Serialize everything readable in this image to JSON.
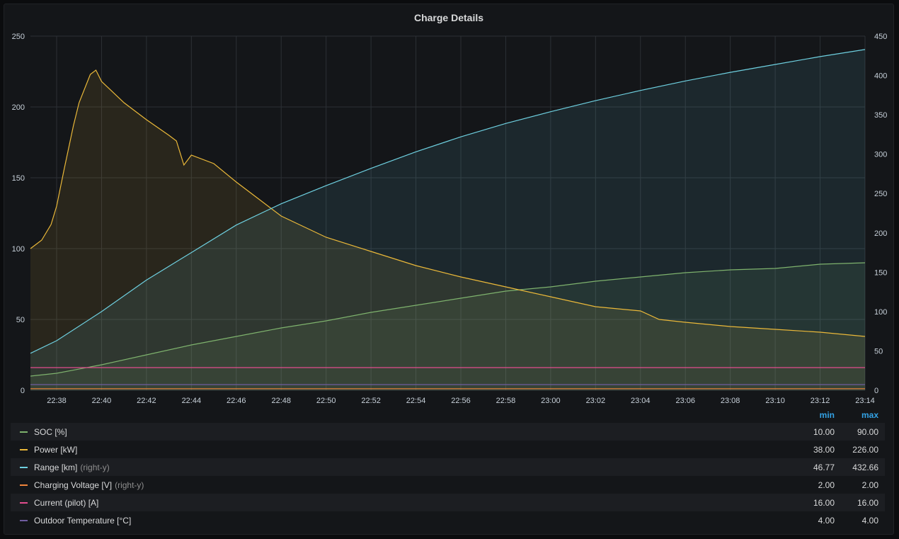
{
  "panel": {
    "title": "Charge Details"
  },
  "legend": {
    "min_label": "min",
    "max_label": "max",
    "rows": [
      {
        "name": "SOC [%]",
        "axis_tag": "",
        "min": "10.00",
        "max": "90.00",
        "color": "#7eb26d"
      },
      {
        "name": "Power [kW]",
        "axis_tag": "",
        "min": "38.00",
        "max": "226.00",
        "color": "#eab839"
      },
      {
        "name": "Range [km]",
        "axis_tag": "(right-y)",
        "min": "46.77",
        "max": "432.66",
        "color": "#6ed0e0"
      },
      {
        "name": "Charging Voltage [V]",
        "axis_tag": "(right-y)",
        "min": "2.00",
        "max": "2.00",
        "color": "#ef843c"
      },
      {
        "name": "Current (pilot) [A]",
        "axis_tag": "",
        "min": "16.00",
        "max": "16.00",
        "color": "#e24d8e"
      },
      {
        "name": "Outdoor Temperature [°C]",
        "axis_tag": "",
        "min": "4.00",
        "max": "4.00",
        "color": "#705da0"
      }
    ]
  },
  "chart_data": {
    "type": "line",
    "title": "Charge Details",
    "x_range_minutes": [
      22.6,
      23.233
    ],
    "x_ticks": [
      "22:38",
      "22:40",
      "22:42",
      "22:44",
      "22:46",
      "22:48",
      "22:50",
      "22:52",
      "22:54",
      "22:56",
      "22:58",
      "23:00",
      "23:02",
      "23:04",
      "23:06",
      "23:08",
      "23:10",
      "23:12",
      "23:14"
    ],
    "x_start_time": "22:36:50",
    "x_end_time": "23:14:00",
    "y_left": {
      "min": 0,
      "max": 250,
      "ticks": [
        "0",
        "50",
        "100",
        "150",
        "200",
        "250"
      ]
    },
    "y_right": {
      "min": 0,
      "max": 450,
      "ticks": [
        "0",
        "50",
        "100",
        "150",
        "200",
        "250",
        "300",
        "350",
        "400",
        "450"
      ]
    },
    "grid": true,
    "legend_position": "bottom",
    "series": [
      {
        "name": "SOC [%]",
        "axis": "left",
        "color": "#7eb26d",
        "fill": true,
        "x": [
          "22:36:50",
          "22:38",
          "22:40",
          "22:42",
          "22:44",
          "22:46",
          "22:48",
          "22:50",
          "22:52",
          "22:54",
          "22:56",
          "22:58",
          "23:00",
          "23:02",
          "23:04",
          "23:06",
          "23:08",
          "23:10",
          "23:12",
          "23:14"
        ],
        "y": [
          10,
          12,
          18,
          25,
          32,
          38,
          44,
          49,
          55,
          60,
          65,
          70,
          73,
          77,
          80,
          83,
          85,
          86,
          89,
          90
        ]
      },
      {
        "name": "Power [kW]",
        "axis": "left",
        "color": "#eab839",
        "fill": true,
        "x": [
          "22:36:50",
          "22:37:20",
          "22:37:45",
          "22:38",
          "22:38:20",
          "22:38:45",
          "22:39",
          "22:39:30",
          "22:39:45",
          "22:40",
          "22:41",
          "22:42",
          "22:43",
          "22:43:20",
          "22:43:40",
          "22:44",
          "22:45",
          "22:46",
          "22:47",
          "22:48",
          "22:50",
          "22:52",
          "22:54",
          "22:56",
          "22:58",
          "23:00",
          "23:02",
          "23:04",
          "23:04:50",
          "23:06",
          "23:08",
          "23:10",
          "23:12",
          "23:14"
        ],
        "y": [
          100,
          106,
          117,
          130,
          156,
          187,
          203,
          223,
          226,
          218,
          203,
          191,
          180,
          176,
          159,
          166,
          160,
          147,
          135,
          123,
          108,
          98,
          88,
          80,
          73,
          66,
          59,
          56,
          50,
          48,
          45,
          43,
          41,
          38
        ]
      },
      {
        "name": "Range [km]",
        "axis": "right",
        "color": "#6ed0e0",
        "fill": true,
        "x": [
          "22:36:50",
          "22:38",
          "22:40",
          "22:42",
          "22:44",
          "22:46",
          "22:48",
          "22:50",
          "22:52",
          "22:54",
          "22:56",
          "22:58",
          "23:00",
          "23:02",
          "23:04",
          "23:06",
          "23:08",
          "23:10",
          "23:12",
          "23:14"
        ],
        "y": [
          47,
          63,
          100,
          140,
          175,
          210,
          237,
          260,
          282,
          303,
          322,
          339,
          354,
          368,
          381,
          393,
          404,
          414,
          424,
          433
        ]
      },
      {
        "name": "Charging Voltage [V]",
        "axis": "right",
        "color": "#ef843c",
        "fill": false,
        "x": [
          "22:36:50",
          "23:14"
        ],
        "y": [
          2,
          2
        ]
      },
      {
        "name": "Current (pilot) [A]",
        "axis": "left",
        "color": "#e24d8e",
        "fill": false,
        "x": [
          "22:36:50",
          "23:14"
        ],
        "y": [
          16,
          16
        ]
      },
      {
        "name": "Outdoor Temperature [°C]",
        "axis": "left",
        "color": "#705da0",
        "fill": false,
        "x": [
          "22:36:50",
          "23:14"
        ],
        "y": [
          4,
          4
        ]
      }
    ]
  }
}
